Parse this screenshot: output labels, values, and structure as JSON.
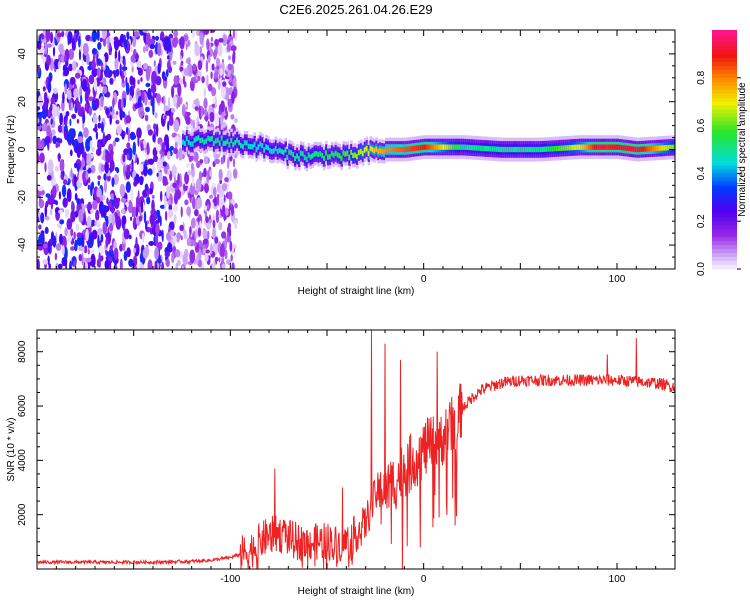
{
  "title": "C2E6.2025.261.04.26.E29",
  "chart_data": [
    {
      "type": "heatmap",
      "title": "C2E6.2025.261.04.26.E29",
      "xlabel": "Height of straight line (km)",
      "ylabel": "Frequency (Hz)",
      "xlim": [
        -200,
        130
      ],
      "ylim": [
        -50,
        50
      ],
      "xticks": [
        -100,
        0,
        100
      ],
      "yticks": [
        -40,
        -20,
        0,
        20,
        40
      ],
      "colorbar": {
        "label": "Normalized spectral amplitude",
        "range": [
          0,
          1
        ],
        "ticks": [
          "0.0",
          "0.2",
          "0.4",
          "0.6",
          "0.8"
        ]
      },
      "ridge": {
        "x": [
          -125,
          -110,
          -100,
          -90,
          -80,
          -70,
          -60,
          -50,
          -40,
          -30,
          -20,
          -10,
          0,
          20,
          40,
          60,
          80,
          90,
          100,
          110,
          130
        ],
        "frequency": [
          3,
          4,
          3,
          2,
          0,
          -2,
          -3,
          -2,
          -3,
          -1,
          0,
          0,
          1,
          1,
          0,
          0,
          1,
          1,
          1,
          0,
          1
        ],
        "amplitude": [
          0.45,
          0.5,
          0.5,
          0.45,
          0.45,
          0.5,
          0.5,
          0.55,
          0.6,
          0.7,
          0.8,
          0.85,
          0.9,
          0.5,
          0.5,
          0.5,
          0.7,
          0.95,
          0.9,
          0.95,
          0.6
        ]
      },
      "noise_region_x": [
        -200,
        -105
      ]
    },
    {
      "type": "line",
      "xlabel": "Height of straight line (km)",
      "ylabel": "SNR (10 * v/v)",
      "xlim": [
        -200,
        130
      ],
      "ylim": [
        0,
        8800
      ],
      "xticks": [
        -100,
        0,
        100
      ],
      "yticks": [
        2000,
        4000,
        6000,
        8000
      ],
      "series": [
        {
          "name": "SNR",
          "color": "#ee2222",
          "x": [
            -200,
            -180,
            -160,
            -140,
            -120,
            -110,
            -100,
            -90,
            -85,
            -80,
            -75,
            -70,
            -65,
            -60,
            -55,
            -50,
            -45,
            -40,
            -35,
            -30,
            -27,
            -25,
            -22,
            -20,
            -15,
            -10,
            -5,
            0,
            5,
            10,
            15,
            20,
            25,
            30,
            40,
            50,
            60,
            70,
            80,
            90,
            100,
            110,
            120,
            130
          ],
          "y": [
            250,
            250,
            250,
            250,
            280,
            320,
            420,
            650,
            1000,
            1250,
            1300,
            1150,
            1000,
            950,
            1000,
            1050,
            900,
            1000,
            1300,
            1700,
            2300,
            2700,
            3100,
            2900,
            3200,
            3700,
            4000,
            4400,
            4600,
            4900,
            5300,
            5900,
            6300,
            6600,
            6850,
            6950,
            6950,
            6950,
            6950,
            6950,
            6950,
            6900,
            6850,
            6700
          ],
          "spikes": [
            {
              "x": -77,
              "y": 3700
            },
            {
              "x": -42,
              "y": 3000
            },
            {
              "x": -27,
              "y": 8800
            },
            {
              "x": -20,
              "y": 8300
            },
            {
              "x": -12,
              "y": 7700
            },
            {
              "x": 7,
              "y": 8000
            },
            {
              "x": 8,
              "y": 1900
            },
            {
              "x": 95,
              "y": 7900
            },
            {
              "x": 110,
              "y": 8500
            }
          ]
        }
      ]
    }
  ]
}
